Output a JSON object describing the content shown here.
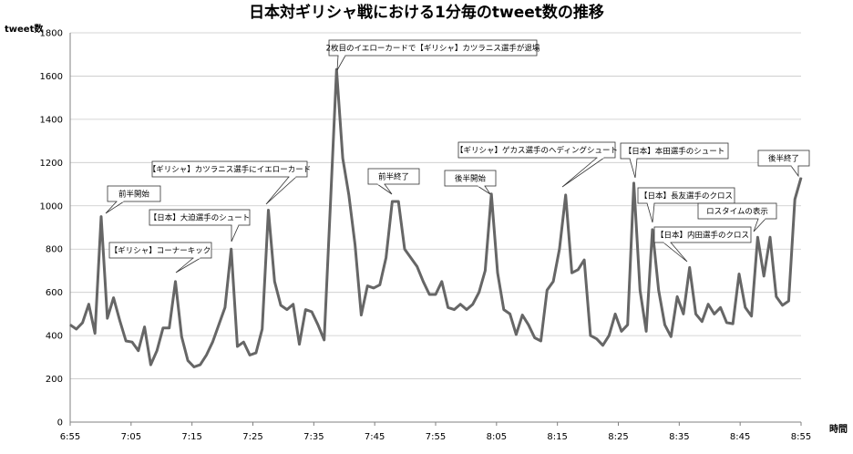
{
  "chart_data": {
    "type": "line",
    "title": "日本対ギリシャ戦における1分毎のtweet数の推移",
    "ylabel": "tweet数",
    "xlabel": "時間",
    "ylim": [
      0,
      1800
    ],
    "yticks": [
      0,
      200,
      400,
      600,
      800,
      1000,
      1200,
      1400,
      1600,
      1800
    ],
    "xtick_labels": [
      "6:55",
      "7:05",
      "7:15",
      "7:25",
      "7:35",
      "7:45",
      "7:55",
      "8:05",
      "8:15",
      "8:25",
      "8:35",
      "8:45",
      "8:55"
    ],
    "x_start_label": "6:55",
    "x_end_label": "8:55",
    "grid": "horizontal",
    "line_color": "#666666",
    "series": [
      {
        "values": [
          450,
          430,
          460,
          545,
          410,
          950,
          480,
          575,
          470,
          375,
          370,
          330,
          440,
          265,
          330,
          435,
          435,
          650,
          395,
          285,
          255,
          265,
          310,
          370,
          450,
          530,
          800,
          350,
          370,
          310,
          320,
          430,
          980,
          650,
          540,
          520,
          545,
          360,
          520,
          510,
          450,
          380,
          1000,
          1630,
          1220,
          1050,
          820,
          495,
          630,
          620,
          635,
          760,
          1020,
          1020,
          800,
          760,
          720,
          650,
          590,
          590,
          650,
          530,
          520,
          545,
          520,
          545,
          600,
          700,
          1055,
          690,
          520,
          500,
          405,
          495,
          450,
          390,
          375,
          610,
          650,
          800,
          1050,
          690,
          705,
          750,
          400,
          385,
          355,
          400,
          500,
          420,
          450,
          1105,
          610,
          420,
          890,
          610,
          450,
          395,
          580,
          500,
          715,
          500,
          465,
          545,
          500,
          530,
          460,
          455,
          685,
          530,
          490,
          855,
          675,
          855,
          580,
          540,
          560,
          1030,
          1130
        ]
      }
    ],
    "annotations": [
      {
        "text": "前半開始",
        "time": "7:01"
      },
      {
        "text": "【ギリシャ】コーナーキック",
        "time": "7:12"
      },
      {
        "text": "【日本】大迫選手のシュート",
        "time": "7:21"
      },
      {
        "text": "【ギリシャ】カツラニス選手にイエローカード",
        "time": "7:27"
      },
      {
        "text": "2枚目のイエローカードで【ギリシャ】カツラニス選手が退場",
        "time": "7:38"
      },
      {
        "text": "前半終了",
        "time": "7:47"
      },
      {
        "text": "後半開始",
        "time": "8:03"
      },
      {
        "text": "【ギリシャ】ゲカス選手のヘディングシュート",
        "time": "8:15"
      },
      {
        "text": "【日本】本田選手のシュート",
        "time": "8:26"
      },
      {
        "text": "【日本】長友選手のクロス",
        "time": "8:29"
      },
      {
        "text": "【日本】内田選手のクロス",
        "time": "8:35"
      },
      {
        "text": "ロスタイムの表示",
        "time": "8:45"
      },
      {
        "text": "後半終了",
        "time": "8:54"
      }
    ]
  }
}
